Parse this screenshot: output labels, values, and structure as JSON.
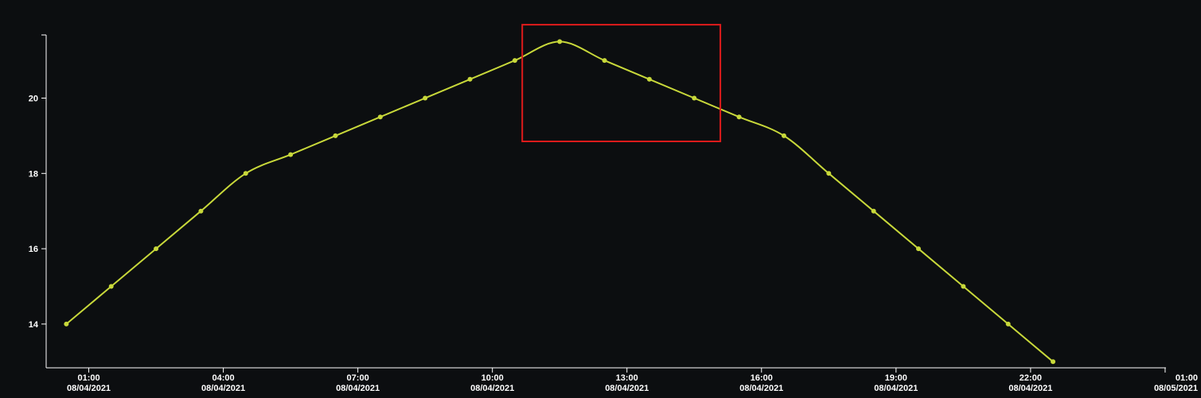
{
  "colors": {
    "background": "#0c0e10",
    "line": "#c8d83a",
    "axis": "#ffffff",
    "selection": "#e01b1b"
  },
  "chart_data": {
    "type": "line",
    "x_start": "08/04/2021 00:30",
    "x_step_hours": 1,
    "x": [
      "00:30",
      "01:30",
      "02:30",
      "03:30",
      "04:30",
      "05:30",
      "06:30",
      "07:30",
      "08:30",
      "09:30",
      "10:30",
      "11:30",
      "12:30",
      "13:30",
      "14:30",
      "15:30",
      "16:30",
      "17:30",
      "18:30",
      "19:30",
      "20:30",
      "21:30",
      "22:30"
    ],
    "series": [
      {
        "values": [
          14,
          15,
          16,
          17,
          18,
          18.5,
          19,
          19.5,
          20,
          20.5,
          21,
          21.5,
          21,
          20.5,
          20,
          19.5,
          19,
          18,
          17,
          16,
          15,
          14,
          13
        ]
      }
    ],
    "xlim": [
      "08/04/2021 00:00",
      "08/05/2021 01:00"
    ],
    "ylim": [
      12.9,
      21.7
    ],
    "y_ticks": [
      {
        "value": 14,
        "label": "14"
      },
      {
        "value": 16,
        "label": "16"
      },
      {
        "value": 18,
        "label": "18"
      },
      {
        "value": 20,
        "label": "20"
      }
    ],
    "x_ticks": [
      {
        "hour": 1,
        "time": "01:00",
        "date": "08/04/2021"
      },
      {
        "hour": 4,
        "time": "04:00",
        "date": "08/04/2021"
      },
      {
        "hour": 7,
        "time": "07:00",
        "date": "08/04/2021"
      },
      {
        "hour": 10,
        "time": "10:00",
        "date": "08/04/2021"
      },
      {
        "hour": 13,
        "time": "13:00",
        "date": "08/04/2021"
      },
      {
        "hour": 16,
        "time": "16:00",
        "date": "08/04/2021"
      },
      {
        "hour": 19,
        "time": "19:00",
        "date": "08/04/2021"
      },
      {
        "hour": 22,
        "time": "22:00",
        "date": "08/04/2021"
      },
      {
        "hour": 25,
        "time": "01:00",
        "date": "08/05/2021"
      }
    ],
    "grid": false,
    "legend": "none",
    "selection": {
      "x_from": "08/04/2021 10:40",
      "x_to": "08/04/2021 15:05",
      "y_from": 18.85,
      "y_to": 21.95
    }
  }
}
